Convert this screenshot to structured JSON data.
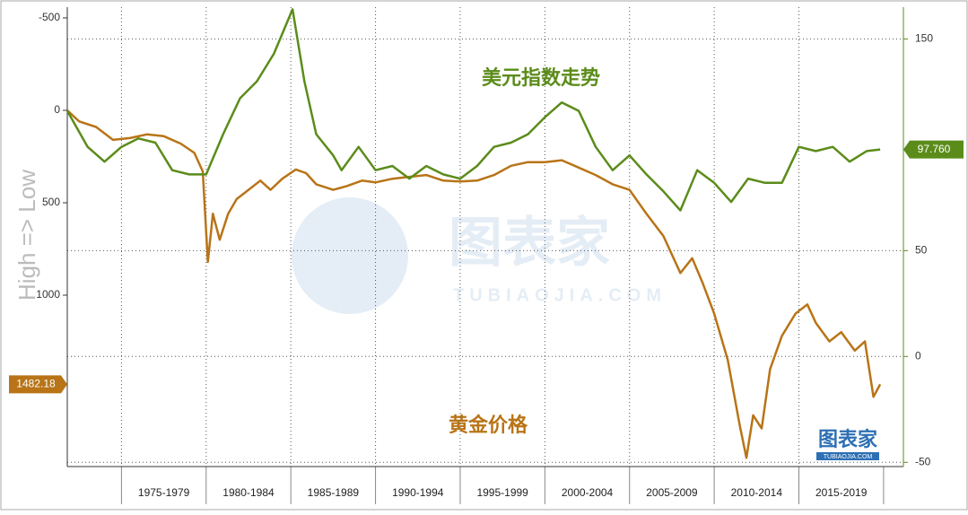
{
  "chart_data": {
    "type": "line",
    "y_label": "High => Low",
    "xlim": [
      1971.8,
      2020.8
    ],
    "x_periods": [
      {
        "label": "1975-1979",
        "start": 1975,
        "end": 1980
      },
      {
        "label": "1980-1984",
        "start": 1980,
        "end": 1985
      },
      {
        "label": "1985-1989",
        "start": 1985,
        "end": 1990
      },
      {
        "label": "1990-1994",
        "start": 1990,
        "end": 1995
      },
      {
        "label": "1995-1999",
        "start": 1995,
        "end": 2000
      },
      {
        "label": "2000-2004",
        "start": 2000,
        "end": 2005
      },
      {
        "label": "2005-2009",
        "start": 2005,
        "end": 2010
      },
      {
        "label": "2010-2014",
        "start": 2010,
        "end": 2015
      },
      {
        "label": "2015-2019",
        "start": 2015,
        "end": 2020
      }
    ],
    "ylim": [
      -558,
      1927
    ],
    "y_inverted": true,
    "yticks": [
      -500,
      0,
      500,
      1000
    ],
    "y2lim": [
      -52,
      165
    ],
    "y2ticks": [
      -50,
      0,
      50,
      150
    ],
    "grid": true,
    "watermark": {
      "text": "图表家",
      "url": "TUBIAOJIA.COM"
    },
    "series": [
      {
        "name": "黄金价格",
        "color": "#b87417",
        "axis": "y",
        "x": [
          1971.8,
          1972.5,
          1973.5,
          1974.5,
          1975.5,
          1976.5,
          1977.5,
          1978.5,
          1979.3,
          1979.8,
          1980.1,
          1980.4,
          1980.8,
          1981.3,
          1981.8,
          1982.5,
          1983.2,
          1983.8,
          1984.5,
          1985.3,
          1985.9,
          1986.5,
          1987.5,
          1988.3,
          1989.2,
          1990,
          1991,
          1992,
          1993,
          1994,
          1995,
          1996,
          1997,
          1998,
          1999,
          2000,
          2001,
          2002,
          2003,
          2004,
          2005,
          2006,
          2007,
          2008,
          2008.7,
          2009.3,
          2010,
          2010.8,
          2011.5,
          2011.9,
          2012.3,
          2012.8,
          2013.3,
          2014,
          2014.8,
          2015.5,
          2016,
          2016.8,
          2017.5,
          2018.3,
          2018.9,
          2019.4,
          2019.8
        ],
        "values": [
          0,
          60,
          90,
          160,
          150,
          130,
          140,
          180,
          230,
          330,
          820,
          560,
          700,
          560,
          480,
          430,
          380,
          430,
          370,
          320,
          340,
          400,
          430,
          410,
          380,
          390,
          370,
          360,
          350,
          380,
          385,
          380,
          350,
          300,
          280,
          280,
          270,
          310,
          350,
          400,
          430,
          560,
          680,
          880,
          800,
          930,
          1100,
          1350,
          1700,
          1880,
          1650,
          1720,
          1400,
          1220,
          1100,
          1050,
          1150,
          1250,
          1200,
          1300,
          1250,
          1550,
          1482.18
        ]
      },
      {
        "name": "美元指数走势",
        "color": "#5b8c1a",
        "axis": "y2",
        "last_label": "97.760",
        "x": [
          1971.8,
          1973,
          1974,
          1975,
          1976,
          1977,
          1978,
          1979,
          1980,
          1981,
          1982,
          1983,
          1984,
          1985.1,
          1985.8,
          1986.5,
          1987.5,
          1988,
          1989,
          1990,
          1991,
          1992,
          1993,
          1994,
          1995,
          1996,
          1997,
          1998,
          1999,
          2000,
          2001,
          2002,
          2003,
          2004,
          2005,
          2006,
          2007,
          2008,
          2009,
          2010,
          2011,
          2012,
          2013,
          2014,
          2015,
          2016,
          2017,
          2018,
          2019,
          2019.8
        ],
        "values": [
          116,
          99,
          92,
          99,
          103,
          101,
          88,
          86,
          86,
          105,
          122,
          130,
          143,
          164,
          130,
          105,
          95,
          88,
          99,
          88,
          90,
          84,
          90,
          86,
          84,
          90,
          99,
          101,
          105,
          113,
          120,
          116,
          99,
          88,
          95,
          86,
          78,
          69,
          88,
          82,
          73,
          84,
          82,
          82,
          99,
          97,
          99,
          92,
          97,
          97.76
        ]
      }
    ]
  }
}
